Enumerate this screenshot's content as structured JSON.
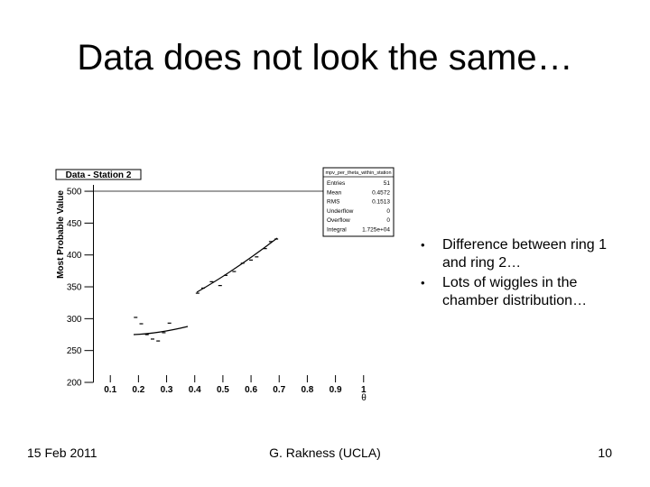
{
  "slide": {
    "title": "Data does not look the same…",
    "bullets": [
      "Difference between ring 1 and ring 2…",
      "Lots of wiggles in the chamber distribution…"
    ],
    "footer": {
      "date": "15 Feb 2011",
      "author": "G. Rakness (UCLA)",
      "page": "10"
    }
  },
  "chart_data": {
    "type": "scatter",
    "title": "Data - Station 2",
    "y_label": "Most Probable Value",
    "x_label": "θ",
    "x": [
      0.19,
      0.21,
      0.23,
      0.25,
      0.27,
      0.29,
      0.31,
      0.41,
      0.43,
      0.46,
      0.49,
      0.51,
      0.54,
      0.57,
      0.6,
      0.62,
      0.65,
      0.67,
      0.69
    ],
    "values": [
      302,
      292,
      275,
      268,
      265,
      278,
      293,
      340,
      348,
      358,
      352,
      368,
      374,
      387,
      392,
      397,
      410,
      421,
      425
    ],
    "color": "#000000",
    "xlim": [
      0.04,
      1.02
    ],
    "ylim": [
      200,
      510
    ],
    "xticks": [
      0.1,
      0.2,
      0.3,
      0.4,
      0.5,
      0.6,
      0.7,
      0.8,
      0.9,
      1
    ],
    "yticks": [
      200,
      250,
      300,
      350,
      400,
      450,
      500
    ],
    "stats": {
      "title": "mpv_per_theta_within_station",
      "rows": [
        [
          "Entries",
          "51"
        ],
        [
          "Mean",
          "0.4572"
        ],
        [
          "RMS",
          "0.1513"
        ],
        [
          "Underflow",
          "0"
        ],
        [
          "Overflow",
          "0"
        ],
        [
          "Integral",
          "1.725e+04"
        ]
      ]
    }
  }
}
